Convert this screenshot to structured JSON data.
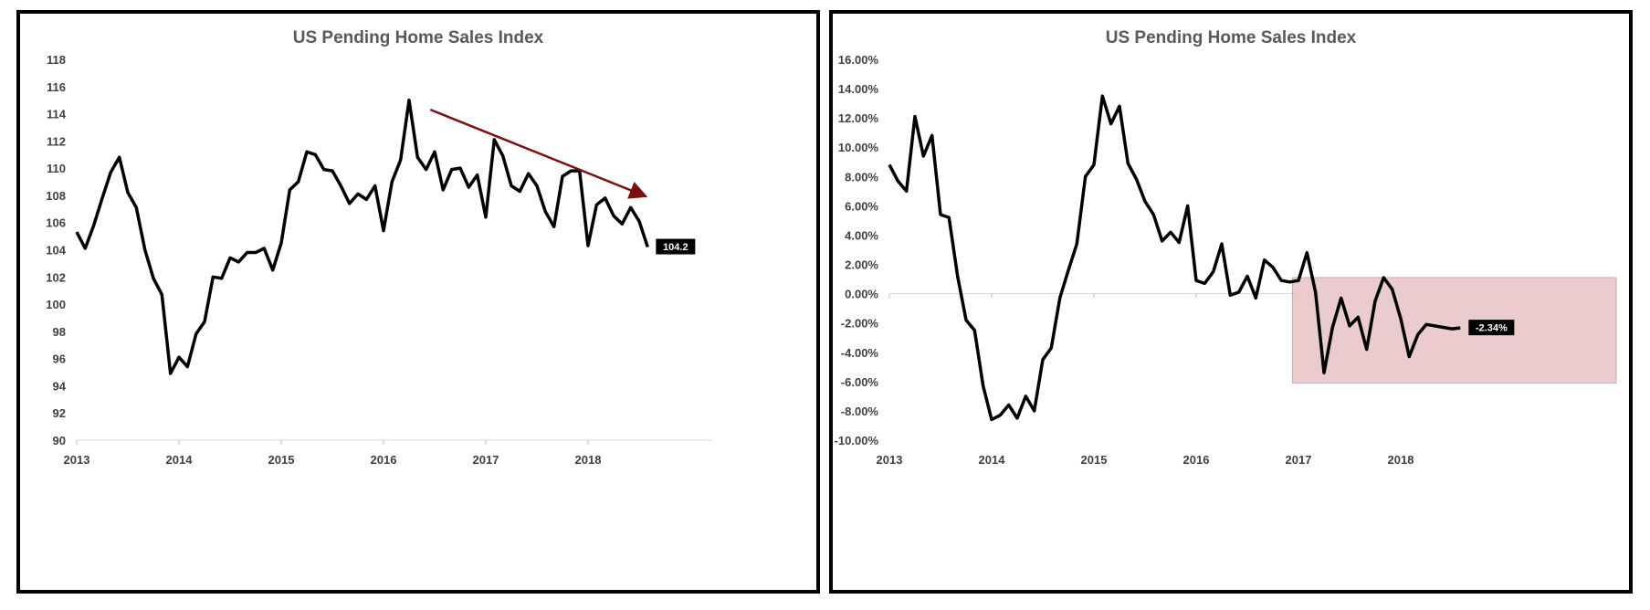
{
  "chart_data": [
    {
      "type": "line",
      "title": "US Pending Home Sales Index",
      "xlabel": "",
      "ylabel": "",
      "ylim": [
        90,
        118
      ],
      "y_ticks": [
        "90",
        "92",
        "94",
        "96",
        "98",
        "100",
        "102",
        "104",
        "106",
        "108",
        "110",
        "112",
        "114",
        "116",
        "118"
      ],
      "x_ticks": [
        "2013",
        "2014",
        "2015",
        "2016",
        "2017",
        "2018"
      ],
      "grid": false,
      "annotations": {
        "last_value_label": "104.2",
        "trend_arrow": "downward trend arrow from mid-2016 to mid-2018"
      },
      "series": [
        {
          "values": [
            105.3,
            104.1,
            105.8,
            107.8,
            109.7,
            110.8,
            108.2,
            107.1,
            104.0,
            101.9,
            100.7,
            94.9,
            96.1,
            95.4,
            97.8,
            98.7,
            102.0,
            101.9,
            103.4,
            103.1,
            103.8,
            103.8,
            104.1,
            102.5,
            104.5,
            108.4,
            109.0,
            111.2,
            111.0,
            109.9,
            109.8,
            108.7,
            107.4,
            108.1,
            107.7,
            108.7,
            105.4,
            109.0,
            110.6,
            115.0,
            110.8,
            109.9,
            111.2,
            108.4,
            109.9,
            110.0,
            108.6,
            109.5,
            106.4,
            112.1,
            110.9,
            108.7,
            108.3,
            109.6,
            108.7,
            106.8,
            105.7,
            109.4,
            109.8,
            109.8,
            104.3,
            107.3,
            107.8,
            106.5,
            105.9,
            107.1,
            106.1,
            104.2
          ],
          "start": "2013-01",
          "frequency": "monthly"
        }
      ],
      "colors": {
        "line": "#000000",
        "arrow": "#7b1010",
        "label_bg": "#000000"
      }
    },
    {
      "type": "line",
      "title": "US Pending Home Sales Index",
      "xlabel": "",
      "ylabel": "",
      "ylim": [
        -10,
        16
      ],
      "y_ticks": [
        "-10.00%",
        "-8.00%",
        "-6.00%",
        "-4.00%",
        "-2.00%",
        "0.00%",
        "2.00%",
        "4.00%",
        "6.00%",
        "8.00%",
        "10.00%",
        "12.00%",
        "14.00%",
        "16.00%"
      ],
      "x_ticks": [
        "2013",
        "2014",
        "2015",
        "2016",
        "2017",
        "2018"
      ],
      "grid": false,
      "annotations": {
        "last_value_label": "-2.34%",
        "highlight_region": "shaded box from 2017 to end of series"
      },
      "series": [
        {
          "values": [
            8.8,
            7.7,
            7.0,
            12.1,
            9.4,
            10.8,
            5.4,
            5.2,
            1.2,
            -1.8,
            -2.5,
            -6.3,
            -8.6,
            -8.3,
            -7.6,
            -8.5,
            -7.0,
            -8.0,
            -4.5,
            -3.7,
            -0.3,
            1.6,
            3.4,
            8.0,
            8.8,
            13.5,
            11.6,
            12.8,
            8.9,
            7.8,
            6.3,
            5.4,
            3.6,
            4.2,
            3.5,
            6.0,
            0.9,
            0.7,
            1.5,
            3.4,
            -0.1,
            0.1,
            1.2,
            -0.3,
            2.3,
            1.8,
            0.9,
            0.8,
            0.9,
            2.8,
            0.1,
            -5.4,
            -2.3,
            -0.3,
            -2.2,
            -1.6,
            -3.8,
            -0.5,
            1.1,
            0.3,
            -1.7,
            -4.3,
            -2.8,
            -2.1,
            -2.2,
            -2.3,
            -2.4,
            -2.34
          ],
          "start": "2013-01",
          "frequency": "monthly"
        }
      ],
      "colors": {
        "line": "#000000",
        "highlight": "#e8c4c6",
        "highlight_border": "#c49da0",
        "label_bg": "#000000"
      }
    }
  ]
}
